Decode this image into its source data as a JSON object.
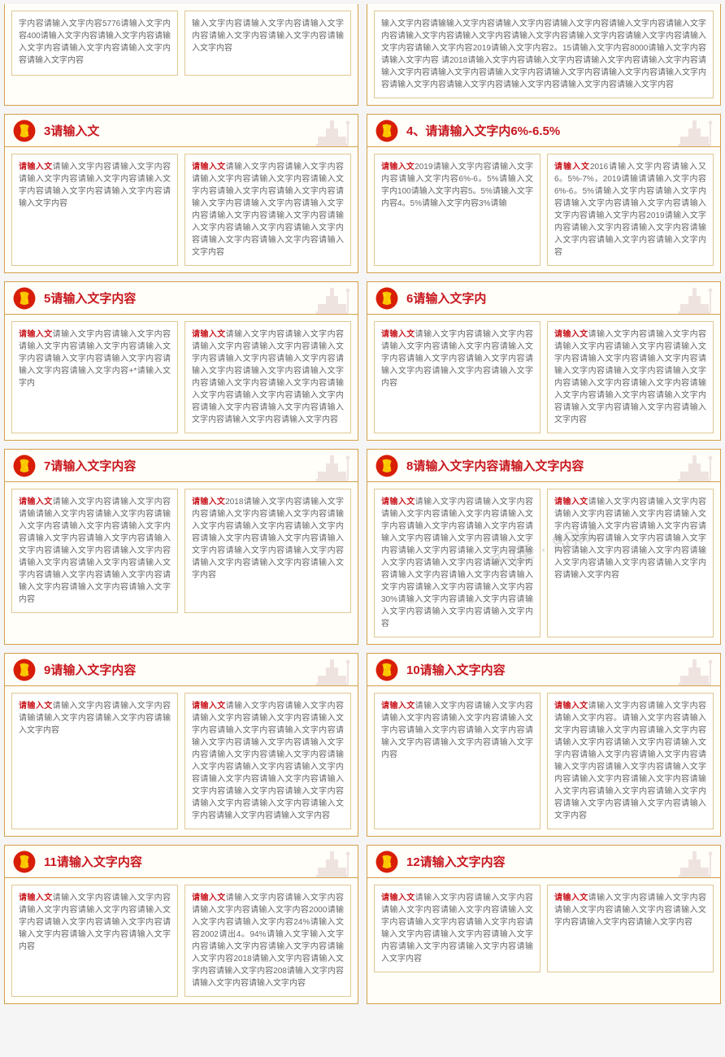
{
  "colors": {
    "panel_border": "#d4a04a",
    "panel_bg": "#fffef9",
    "textbox_border": "#e0c892",
    "textbox_bg": "#ffffff",
    "title_red": "#c8161d",
    "text_gray": "#666666",
    "emblem_red": "#d81e06",
    "emblem_yellow": "#ffd700",
    "monument_red": "#c8a0a0"
  },
  "red_label": "请输入文",
  "watermark": "千库 · 88kc",
  "panels": [
    {
      "id": "top-left",
      "title": "",
      "no_header": true,
      "boxes": [
        {
          "label": "",
          "text": "字内容请输入文字内容5776请输入文字内容400请输入文字内容请输入文字内容请输入文字内容请输入文字内容请输入文字内容请输入文字内容"
        },
        {
          "label": "",
          "text": "输入文字内容请输入文字内容请输入文字内容请输入文字内容请输入文字内容请输入文字内容"
        }
      ]
    },
    {
      "id": "top-right",
      "title": "",
      "no_header": true,
      "single": true,
      "boxes": [
        {
          "label": "",
          "text": "输入文字内容请输输入文字内容请输入文字内容请输入文字内容请输入文字内容请输入文字内容请输入文字内容请输入文字内容请输入文字内容请输入文字内容请输入文字内容请输入文字内容请输入文字内容2019请输入文字内容2。15请输入文字内容8000请输入文字内容请输入文字内容\n请2018请输入文字内容请输入文字内容请输入文字内容请输入文字内容请输入文字内容请输入文字内容请输入文字内容请输入文字内容请输入文字内容请输入文字内容请输入文字内容请输入文字内容请输入文字内容请输入文字内容请输入文字内容"
        }
      ]
    },
    {
      "id": "3",
      "title": "3请输入文",
      "boxes": [
        {
          "label": "请输入文",
          "text": "请输入文字内容请输入文字内容请输入文字内容请输入文字内容请输入文字内容请输入文字内容请输入文字内容请输入文字内容"
        },
        {
          "label": "请输入文",
          "text": "请输入文字内容请输入文字内容请输入文字内容请输入文字内容请输入文字内容请输入文字内容请输入文字内容请输入文字内容请输入文字内容请输入文字内容请输入文字内容请输入文字内容请输入文字内容请输入文字内容请输入文字内容请输入文字内容请输入文字内容请输入文字内容"
        }
      ]
    },
    {
      "id": "4",
      "title": "4、请请输入文字内6%-6.5%",
      "boxes": [
        {
          "label": "请输入文",
          "text": "2019请输入文字内容请输入文字内容请输入文字内容6%-6。5%请输入文字内100请输入文字内容5。5%请输入文字内容4。5%请输入文字内容3%请输"
        },
        {
          "label": "请输入文",
          "text": "2016请输入文字内容请输入又6。5%-7%，2019请输请请输入文字内容6%-6。5%请输入文字内容请输入文字内容请输入文字内容请输入文字内容请输入文字内容请输入文字内容2019请输入文字内容请输入文字内容请输入文字内容请输入文字内容请输入文字内容请输入文字内容"
        }
      ]
    },
    {
      "id": "5",
      "title": "5请输入文字内容",
      "boxes": [
        {
          "label": "请输入文",
          "text": "请输入文字内容请输入文字内容请输入文字内容请输入文字内容请输入文字内容请输入文字内容请输入文字内容请输入文字内容请输入文字内容+*请输入文字内"
        },
        {
          "label": "请输入文",
          "text": "请输入文字内容请输入文字内容请输入文字内容请输入文字内容请输入文字内容请输入文字内容请输入文字内容请输入文字内容请输入文字内容请输入文字内容请输入文字内容请输入文字内容请输入文字内容请输入文字内容请输入文字内容请输入文字内容请输入文字内容请输入文字内容请输入文字内容请输入文字内容"
        }
      ]
    },
    {
      "id": "6",
      "title": "6请输入文字内",
      "boxes": [
        {
          "label": "请输入文",
          "text": "请输入文字内容请输入文字内容请输入文字内容请输入文字内容请输入文字内容请输入文字内容请输入文字内容请输入文字内容请输入文字内容请输入文字内容"
        },
        {
          "label": "请输入文",
          "text": "请输入文字内容请输入文字内容请输入文字内容请输入文字内容请输入文字内容请输入文字内容请输入文字内容请输入文字内容请输入文字内容请输入文字内容请输入文字内容请输入文字内容请输入文字内容请输入文字内容请输入文字内容请输入文字内容请输入文字内容请输入文字内容"
        }
      ]
    },
    {
      "id": "7",
      "title": "7请输入文字内容",
      "boxes": [
        {
          "label": "请输入文",
          "text": "请输入文字内容请输入文字内容请输请输入文字内容请输入文字内容请输入文字内容请输入文字内容请输入文字内容请输入文字内容请输入文字内容请输入文字内容请输入文字内容请输入文字内容请输入文字内容请输入文字内容请输入文字内容请输入文字内容请输入文字内容请输入文字内容请输入文字内容请输入文字内容"
        },
        {
          "label": "请输入文",
          "text": "2018请输入文字内容请输入文字内容请输入文字内容请输入文字内容请输入文字内容请输入文字内容请输入文字内容请输入文字内容请输入文字内容请输入文字内容请输入文字内容请输入文字内容请输入文字内容请输入文字内容请输入文字内容"
        }
      ]
    },
    {
      "id": "8",
      "title": "8请输入文字内容请输入文字内容",
      "has_watermark": true,
      "boxes": [
        {
          "label": "请输入文",
          "text": "请输入文字内容请输入文字内容请输入文字内容请输入文字内容请输入文字内容请输入文字内容请输入文字内容请输入文字内容请输入文字内容请输入文字内容请输入文字内容请输入文字内容请输入文字内容请输入文字内容请输入文字内容请输入文字内容请输入文字内容请输入文字内容请输入文字内容请输入文字内容30%请输入文字内容请输入文字内容请输入文字内容请输入文字内容请输入文字内容"
        },
        {
          "label": "请输入文",
          "text": "请输入文字内容请输入文字内容请输入文字内容请输入文字内容请输入文字内容请输入文字内容请输入文字内容请输入文字内容请输入文字内容请输入文字内容请输入文字内容请输入文字内容请输入文字内容请输入文字内容请输入文字内容请输入文字内容"
        }
      ]
    },
    {
      "id": "9",
      "title": "9请输入文字内容",
      "boxes": [
        {
          "label": "请输入文",
          "text": "请输入文字内容请输入文字内容请输请输入文字内容请输入文字内容请输入文字内容"
        },
        {
          "label": "请输入文",
          "text": "请输入文字内容请输入文字内容请输入文字内容请输入文字内容请输入文字内容请输入文字内容请输入文字内容请输入文字内容请输入文字内容请输入文字内容请输入文字内容请输入文字内容请输入文字内容请输入文字内容请输入文字内容请输入文字内容请输入文字内容请输入文字内容请输入文字内容请输入文字内容请输入文字内容请输入文字内容请输入文字内容请输入文字内容请输入文字内容"
        }
      ]
    },
    {
      "id": "10",
      "title": "10请输入文字内容",
      "boxes": [
        {
          "label": "请输入文",
          "text": "请输入文字内容请输入文字内容请输入文字内容请输入文字内容请输入文字内容请输入文字内容请输入文字内容请输入文字内容请输入文字内容请输入文字内容"
        },
        {
          "label": "请输入文",
          "text": "请输入文字内容请输入文字内容请输入文字内容。请输入文字内容请输入文字内容请输入文字内容请输入文字内容请输入文字内容请输入文字内容请输入文字内容请输入文字内容请输入文字内容请输入文字内容请输入文字内容请输入文字内容请输入文字内容请输入文字内容请输入文字内容请输入文字内容请输入文字内容请输入文字内容请输入文字内容请输入文字内容"
        }
      ]
    },
    {
      "id": "11",
      "title": "11请输入文字内容",
      "boxes": [
        {
          "label": "请输入文",
          "text": "请输入文字内容请输入文字内容请输入文字内容请输入文字内容请输入文字内容请输入文字内容请输入文字内容请输入文字内容请输入文字内容请输入文字内容"
        },
        {
          "label": "请输入文",
          "text": "请输入文字内容请输入文字内容请输入文字内容请输入文字内容2000请输入文字内容请输入文字内容24%请输入文容2002请出4。94%请输入文字输入文字内容请输入文字内容请输入文字内容请输入文字内容2018请输入文字内容请输入文字内容请输入文字内容208请输入文字内容请输入文字内容请输入文字内容"
        }
      ]
    },
    {
      "id": "12",
      "title": "12请输入文字内容",
      "boxes": [
        {
          "label": "请输入文",
          "text": "请输入文字内容请输入文字内容请输入文字内容请输入文字内容请输入文字内容请输入文字内容请输入文字内容请输入文字内容请输入文字内容请输入文字内容请输入文字内容请输入文字内容请输入文字内容"
        },
        {
          "label": "请输入文",
          "text": "请输入文字内容请输入文字内容请输入文字内容请输入文字内容请输入文字内容请输入文字内容请输入文字内容"
        }
      ]
    }
  ]
}
